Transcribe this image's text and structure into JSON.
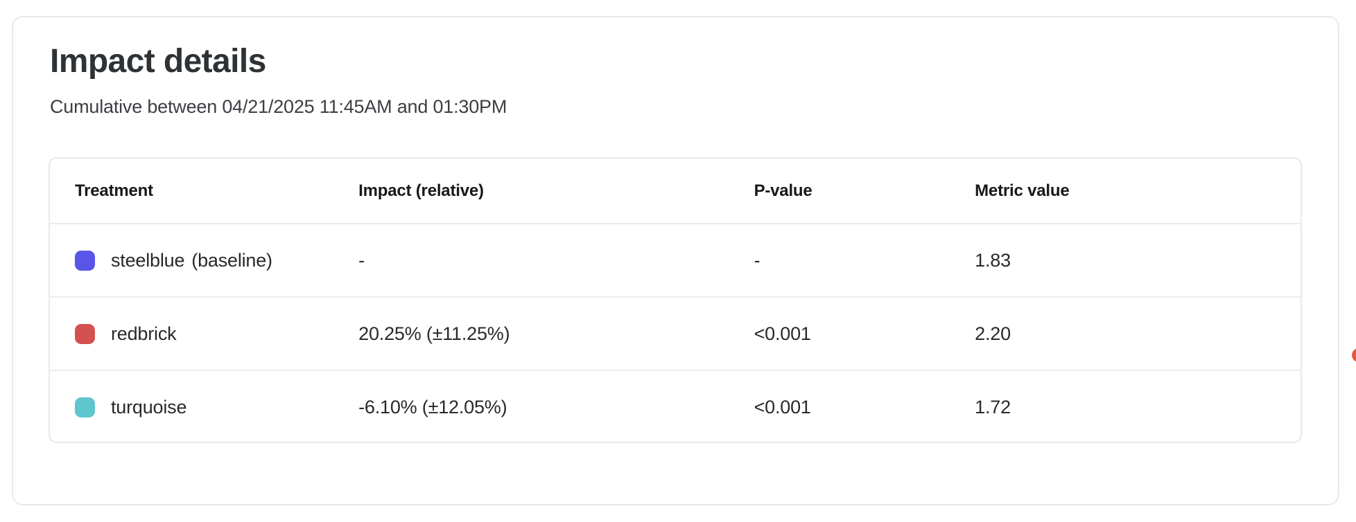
{
  "panel": {
    "title": "Impact details",
    "subtitle": "Cumulative between 04/21/2025 11:45AM and 01:30PM"
  },
  "table": {
    "columns": [
      "Treatment",
      "Impact (relative)",
      "P-value",
      "Metric value"
    ],
    "rows": [
      {
        "name": "steelblue",
        "suffix": "(baseline)",
        "color": "#5955e8",
        "impact": "-",
        "p_value": "-",
        "metric_value": "1.83"
      },
      {
        "name": "redbrick",
        "suffix": "",
        "color": "#d45151",
        "impact": "20.25% (±11.25%)",
        "p_value": "<0.001",
        "metric_value": "2.20"
      },
      {
        "name": "turquoise",
        "suffix": "",
        "color": "#5fc5ce",
        "impact": "-6.10% (±12.05%)",
        "p_value": "<0.001",
        "metric_value": "1.72"
      }
    ]
  },
  "edge_indicator": {
    "color": "#e2593c"
  }
}
